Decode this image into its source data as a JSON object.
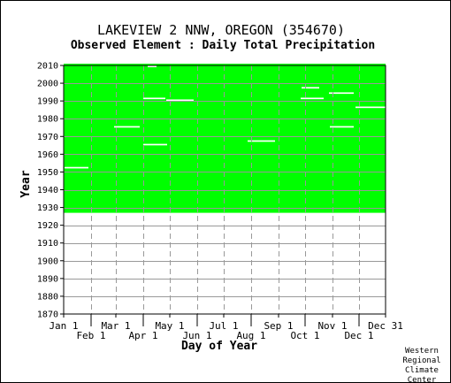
{
  "chart_data": {
    "type": "heatmap",
    "title": "LAKEVIEW 2 NNW, OREGON   (354670)",
    "subtitle": "Observed Element : Daily Total Precipitation",
    "xlabel": "Day of Year",
    "ylabel": "Year",
    "x_ticks_upper": [
      "Jan 1",
      "Mar 1",
      "May 1",
      "Jul 1",
      "Sep 1",
      "Nov 1",
      "Dec 31"
    ],
    "x_ticks_lower": [
      "Feb 1",
      "Apr 1",
      "Jun 1",
      "Aug 1",
      "Oct 1",
      "Dec 1"
    ],
    "y_ticks": [
      2010,
      2000,
      1990,
      1980,
      1970,
      1960,
      1950,
      1940,
      1930,
      1920,
      1910,
      1900,
      1890,
      1880,
      1870
    ],
    "ylim": [
      1870,
      2010
    ],
    "xlim": [
      1,
      365
    ],
    "grid": true,
    "data_color": "#00ff00",
    "missing_color": "#ffffff",
    "coverage": {
      "start_year": 1927,
      "end_year": 2010
    },
    "missing_periods": [
      {
        "year": 1952,
        "start_day": 2,
        "end_day": 29
      },
      {
        "year": 1975,
        "start_day": 58,
        "end_day": 87
      },
      {
        "year": 1965,
        "start_day": 91,
        "end_day": 118
      },
      {
        "year": 1991,
        "start_day": 91,
        "end_day": 116
      },
      {
        "year": 1990,
        "start_day": 117,
        "end_day": 148
      },
      {
        "year": 1967,
        "start_day": 209,
        "end_day": 240
      },
      {
        "year": 1991,
        "start_day": 269,
        "end_day": 295
      },
      {
        "year": 1994,
        "start_day": 301,
        "end_day": 329
      },
      {
        "year": 1975,
        "start_day": 302,
        "end_day": 329
      },
      {
        "year": 1986,
        "start_day": 331,
        "end_day": 365
      },
      {
        "year": 1997,
        "start_day": 270,
        "end_day": 290
      },
      {
        "year": 2009,
        "start_day": 96,
        "end_day": 106
      }
    ],
    "credit": [
      "Western",
      "Regional",
      "Climate",
      "Center"
    ]
  }
}
